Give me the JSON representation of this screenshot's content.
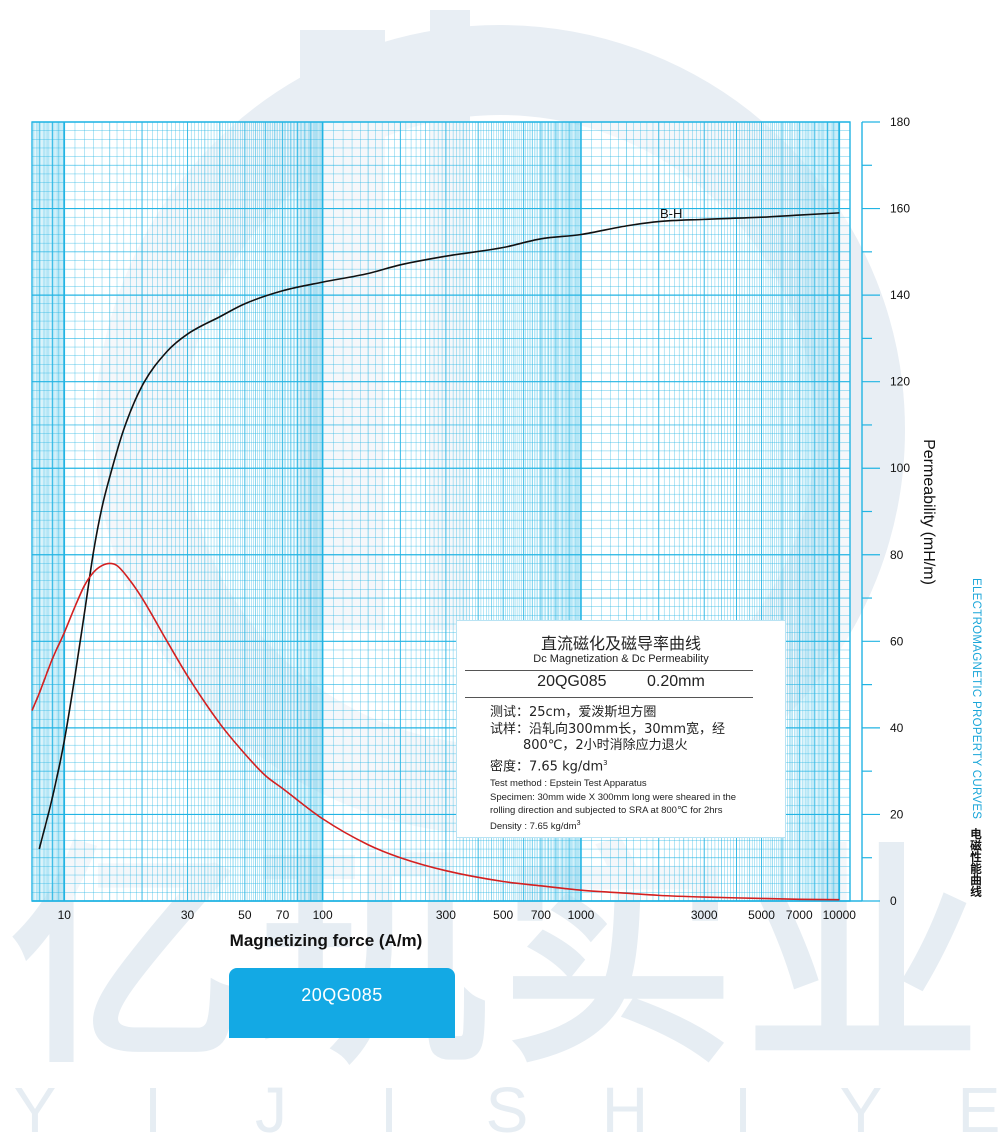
{
  "chart_data": {
    "type": "line",
    "xlabel": "Magnetizing force (A/m)",
    "ylabel": "Permeability (mH/m)",
    "x_scale": "log",
    "xlim": [
      7.5,
      11000
    ],
    "ylim": [
      0,
      180
    ],
    "x_ticks": [
      10,
      30,
      50,
      70,
      100,
      300,
      500,
      700,
      1000,
      3000,
      5000,
      7000,
      10000
    ],
    "y_ticks": [
      0,
      20,
      40,
      60,
      80,
      100,
      120,
      140,
      160,
      180
    ],
    "grid": true,
    "grid_color": "#22b4e3",
    "series": [
      {
        "name": "B-H",
        "color": "#111111",
        "points": [
          [
            8,
            12
          ],
          [
            9,
            24
          ],
          [
            10,
            37
          ],
          [
            11,
            52
          ],
          [
            12,
            67
          ],
          [
            13,
            81
          ],
          [
            14,
            91
          ],
          [
            15,
            98
          ],
          [
            17,
            109
          ],
          [
            20,
            119
          ],
          [
            25,
            127
          ],
          [
            30,
            131
          ],
          [
            40,
            135
          ],
          [
            50,
            138
          ],
          [
            70,
            141
          ],
          [
            100,
            143
          ],
          [
            150,
            145
          ],
          [
            200,
            147
          ],
          [
            300,
            149
          ],
          [
            500,
            151
          ],
          [
            700,
            153
          ],
          [
            1000,
            154
          ],
          [
            1500,
            156
          ],
          [
            2000,
            157
          ],
          [
            3000,
            157.5
          ],
          [
            5000,
            158
          ],
          [
            7000,
            158.5
          ],
          [
            10000,
            159
          ]
        ]
      },
      {
        "name": "",
        "color": "#d42020",
        "points": [
          [
            7.5,
            44
          ],
          [
            8,
            48
          ],
          [
            9,
            56
          ],
          [
            10,
            62
          ],
          [
            11,
            68
          ],
          [
            12,
            73
          ],
          [
            13,
            76
          ],
          [
            14,
            77.5
          ],
          [
            15,
            78
          ],
          [
            16,
            77.5
          ],
          [
            18,
            74
          ],
          [
            20,
            70
          ],
          [
            25,
            60
          ],
          [
            30,
            52
          ],
          [
            40,
            41
          ],
          [
            50,
            34
          ],
          [
            60,
            29
          ],
          [
            70,
            26
          ],
          [
            100,
            19
          ],
          [
            150,
            13
          ],
          [
            200,
            10
          ],
          [
            300,
            7
          ],
          [
            500,
            4.5
          ],
          [
            700,
            3.5
          ],
          [
            1000,
            2.5
          ],
          [
            1500,
            1.8
          ],
          [
            2000,
            1.3
          ],
          [
            3000,
            0.9
          ],
          [
            5000,
            0.6
          ],
          [
            7000,
            0.4
          ],
          [
            10000,
            0.3
          ]
        ]
      }
    ],
    "annotations": [
      "B-H"
    ]
  },
  "info_box": {
    "title_cn": "直流磁化及磁导率曲线",
    "title_en": "Dc Magnetization & Dc Permeability",
    "model": "20QG085",
    "thickness": "0.20mm",
    "cn_line1": "测试：25cm，爱泼斯坦方圈",
    "cn_line2": "试样：沿轧向300mm长，30mm宽，经",
    "cn_line3": "800℃，2小时消除应力退火",
    "cn_line4_label": "密度：7.65 kg/dm",
    "cn_line4_sup": "3",
    "en_line1": "Test method : Epstein Test Apparatus",
    "en_line2": "Specimen: 30mm wide X 300mm long were sheared in the",
    "en_line3": "rolling direction and subjected to SRA at 800℃ for 2hrs",
    "en_line4_label": "Density : 7.65 kg/dm",
    "en_line4_sup": "3"
  },
  "side_title": {
    "en": "ELECTROMAGNETIC PROPERTY CURVES",
    "cn": "电磁性能曲线"
  },
  "model_tab": {
    "label": "20QG085"
  },
  "watermark": {
    "cn": "亿玑实业",
    "en": [
      "Y",
      "I",
      "J",
      "I",
      "S",
      "H",
      "I",
      "Y",
      "E"
    ],
    "color": "#e6edf3"
  }
}
